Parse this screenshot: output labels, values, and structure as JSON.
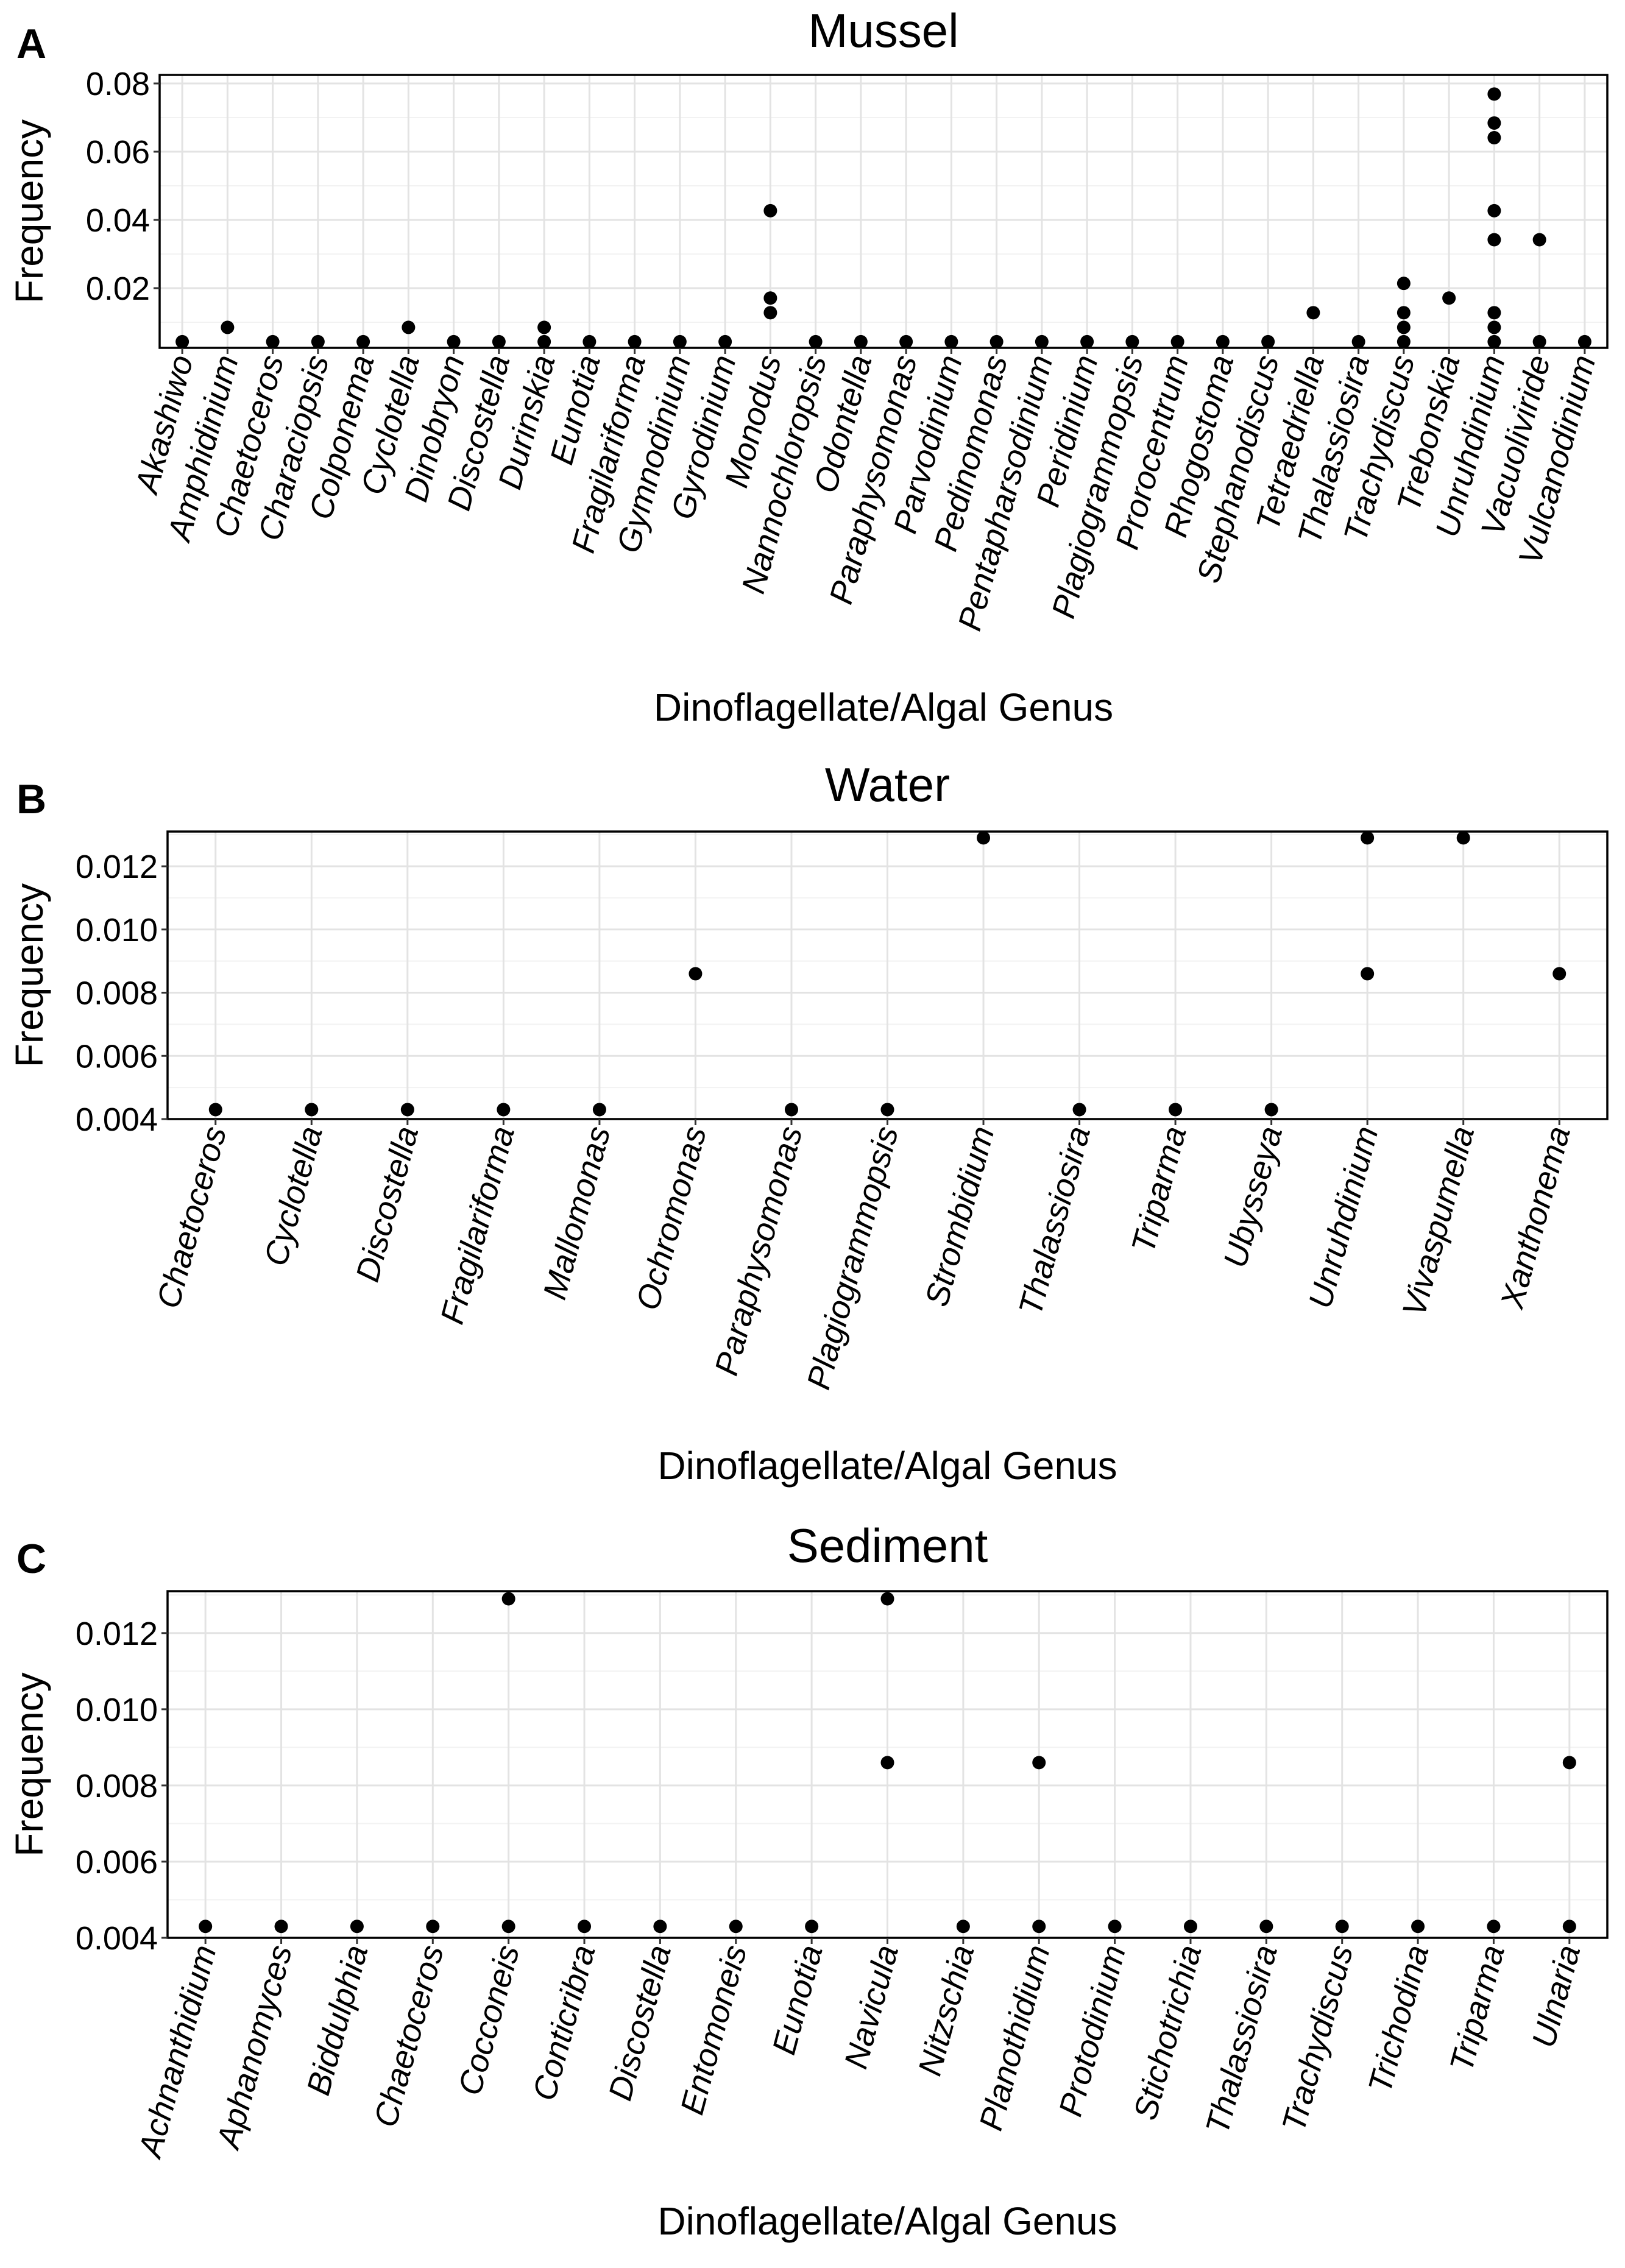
{
  "chart_data": [
    {
      "type": "scatter",
      "panel": "A",
      "title": "Mussel",
      "xlabel": "Dinoflagellate/Algal Genus",
      "ylabel": "Frequency",
      "ylim": [
        0.0025,
        0.0825
      ],
      "yticks": [
        0.02,
        0.04,
        0.06,
        0.08
      ],
      "ytick_labels": [
        "0.02",
        "0.04",
        "0.06",
        "0.08"
      ],
      "categories": [
        "Akashiwo",
        "Amphidinium",
        "Chaetoceros",
        "Characiopsis",
        "Colponema",
        "Cyclotella",
        "Dinobryon",
        "Discostella",
        "Durinskia",
        "Eunotia",
        "Fragilariforma",
        "Gymnodinium",
        "Gyrodinium",
        "Monodus",
        "Nannochloropsis",
        "Odontella",
        "Paraphysomonas",
        "Parvodinium",
        "Pedinomonas",
        "Pentapharsodinium",
        "Peridinium",
        "Plagiogrammopsis",
        "Prorocentrum",
        "Rhogostoma",
        "Stephanodiscus",
        "Tetraedriella",
        "Thalassiosira",
        "Trachydiscus",
        "Trebonskia",
        "Unruhdinium",
        "Vacuoliviride",
        "Vulcanodinium"
      ],
      "points": [
        {
          "x": "Akashiwo",
          "y": 0.0043
        },
        {
          "x": "Amphidinium",
          "y": 0.0085
        },
        {
          "x": "Chaetoceros",
          "y": 0.0043
        },
        {
          "x": "Characiopsis",
          "y": 0.0043
        },
        {
          "x": "Colponema",
          "y": 0.0043
        },
        {
          "x": "Cyclotella",
          "y": 0.0085
        },
        {
          "x": "Dinobryon",
          "y": 0.0043
        },
        {
          "x": "Discostella",
          "y": 0.0043
        },
        {
          "x": "Durinskia",
          "y": 0.0043
        },
        {
          "x": "Durinskia",
          "y": 0.0085
        },
        {
          "x": "Eunotia",
          "y": 0.0043
        },
        {
          "x": "Fragilariforma",
          "y": 0.0043
        },
        {
          "x": "Gymnodinium",
          "y": 0.0043
        },
        {
          "x": "Gyrodinium",
          "y": 0.0043
        },
        {
          "x": "Monodus",
          "y": 0.0128
        },
        {
          "x": "Monodus",
          "y": 0.0171
        },
        {
          "x": "Monodus",
          "y": 0.0427
        },
        {
          "x": "Nannochloropsis",
          "y": 0.0043
        },
        {
          "x": "Odontella",
          "y": 0.0043
        },
        {
          "x": "Paraphysomonas",
          "y": 0.0043
        },
        {
          "x": "Parvodinium",
          "y": 0.0043
        },
        {
          "x": "Pedinomonas",
          "y": 0.0043
        },
        {
          "x": "Pentapharsodinium",
          "y": 0.0043
        },
        {
          "x": "Peridinium",
          "y": 0.0043
        },
        {
          "x": "Plagiogrammopsis",
          "y": 0.0043
        },
        {
          "x": "Prorocentrum",
          "y": 0.0043
        },
        {
          "x": "Rhogostoma",
          "y": 0.0043
        },
        {
          "x": "Stephanodiscus",
          "y": 0.0043
        },
        {
          "x": "Tetraedriella",
          "y": 0.0128
        },
        {
          "x": "Thalassiosira",
          "y": 0.0043
        },
        {
          "x": "Trachydiscus",
          "y": 0.0043
        },
        {
          "x": "Trachydiscus",
          "y": 0.0085
        },
        {
          "x": "Trachydiscus",
          "y": 0.0128
        },
        {
          "x": "Trachydiscus",
          "y": 0.0214
        },
        {
          "x": "Trebonskia",
          "y": 0.0171
        },
        {
          "x": "Unruhdinium",
          "y": 0.0043
        },
        {
          "x": "Unruhdinium",
          "y": 0.0085
        },
        {
          "x": "Unruhdinium",
          "y": 0.0128
        },
        {
          "x": "Unruhdinium",
          "y": 0.0342
        },
        {
          "x": "Unruhdinium",
          "y": 0.0427
        },
        {
          "x": "Unruhdinium",
          "y": 0.0641
        },
        {
          "x": "Unruhdinium",
          "y": 0.0684
        },
        {
          "x": "Unruhdinium",
          "y": 0.0769
        },
        {
          "x": "Vacuoliviride",
          "y": 0.0043
        },
        {
          "x": "Vacuoliviride",
          "y": 0.0342
        },
        {
          "x": "Vulcanodinium",
          "y": 0.0043
        }
      ]
    },
    {
      "type": "scatter",
      "panel": "B",
      "title": "Water",
      "xlabel": "Dinoflagellate/Algal Genus",
      "ylabel": "Frequency",
      "ylim": [
        0.004,
        0.0131
      ],
      "yticks": [
        0.004,
        0.006,
        0.008,
        0.01,
        0.012
      ],
      "ytick_labels": [
        "0.004",
        "0.006",
        "0.008",
        "0.010",
        "0.012"
      ],
      "categories": [
        "Chaetoceros",
        "Cyclotella",
        "Discostella",
        "Fragilariforma",
        "Mallomonas",
        "Ochromonas",
        "Paraphysomonas",
        "Plagiogrammopsis",
        "Strombidium",
        "Thalassiosira",
        "Triparma",
        "Ubysseya",
        "Unruhdinium",
        "Vivaspumella",
        "Xanthonema"
      ],
      "points": [
        {
          "x": "Chaetoceros",
          "y": 0.0043
        },
        {
          "x": "Cyclotella",
          "y": 0.0043
        },
        {
          "x": "Discostella",
          "y": 0.0043
        },
        {
          "x": "Fragilariforma",
          "y": 0.0043
        },
        {
          "x": "Mallomonas",
          "y": 0.0043
        },
        {
          "x": "Ochromonas",
          "y": 0.0086
        },
        {
          "x": "Paraphysomonas",
          "y": 0.0043
        },
        {
          "x": "Plagiogrammopsis",
          "y": 0.0043
        },
        {
          "x": "Strombidium",
          "y": 0.0129
        },
        {
          "x": "Thalassiosira",
          "y": 0.0043
        },
        {
          "x": "Triparma",
          "y": 0.0043
        },
        {
          "x": "Ubysseya",
          "y": 0.0043
        },
        {
          "x": "Unruhdinium",
          "y": 0.0086
        },
        {
          "x": "Unruhdinium",
          "y": 0.0129
        },
        {
          "x": "Vivaspumella",
          "y": 0.0129
        },
        {
          "x": "Xanthonema",
          "y": 0.0086
        }
      ]
    },
    {
      "type": "scatter",
      "panel": "C",
      "title": "Sediment",
      "xlabel": "Dinoflagellate/Algal Genus",
      "ylabel": "Frequency",
      "ylim": [
        0.004,
        0.0131
      ],
      "yticks": [
        0.004,
        0.006,
        0.008,
        0.01,
        0.012
      ],
      "ytick_labels": [
        "0.004",
        "0.006",
        "0.008",
        "0.010",
        "0.012"
      ],
      "categories": [
        "Achnanthidium",
        "Aphanomyces",
        "Biddulphia",
        "Chaetoceros",
        "Cocconeis",
        "Conticribra",
        "Discostella",
        "Entomoneis",
        "Eunotia",
        "Navicula",
        "Nitzschia",
        "Planothidium",
        "Protodinium",
        "Stichotrichia",
        "Thalassiosira",
        "Trachydiscus",
        "Trichodina",
        "Triparma",
        "Ulnaria"
      ],
      "points": [
        {
          "x": "Achnanthidium",
          "y": 0.0043
        },
        {
          "x": "Aphanomyces",
          "y": 0.0043
        },
        {
          "x": "Biddulphia",
          "y": 0.0043
        },
        {
          "x": "Chaetoceros",
          "y": 0.0043
        },
        {
          "x": "Cocconeis",
          "y": 0.0043
        },
        {
          "x": "Cocconeis",
          "y": 0.0129
        },
        {
          "x": "Conticribra",
          "y": 0.0043
        },
        {
          "x": "Discostella",
          "y": 0.0043
        },
        {
          "x": "Entomoneis",
          "y": 0.0043
        },
        {
          "x": "Eunotia",
          "y": 0.0043
        },
        {
          "x": "Navicula",
          "y": 0.0086
        },
        {
          "x": "Navicula",
          "y": 0.0129
        },
        {
          "x": "Nitzschia",
          "y": 0.0043
        },
        {
          "x": "Planothidium",
          "y": 0.0043
        },
        {
          "x": "Planothidium",
          "y": 0.0086
        },
        {
          "x": "Protodinium",
          "y": 0.0043
        },
        {
          "x": "Stichotrichia",
          "y": 0.0043
        },
        {
          "x": "Thalassiosira",
          "y": 0.0043
        },
        {
          "x": "Trachydiscus",
          "y": 0.0043
        },
        {
          "x": "Trichodina",
          "y": 0.0043
        },
        {
          "x": "Triparma",
          "y": 0.0043
        },
        {
          "x": "Ulnaria",
          "y": 0.0043
        },
        {
          "x": "Ulnaria",
          "y": 0.0086
        }
      ]
    }
  ]
}
